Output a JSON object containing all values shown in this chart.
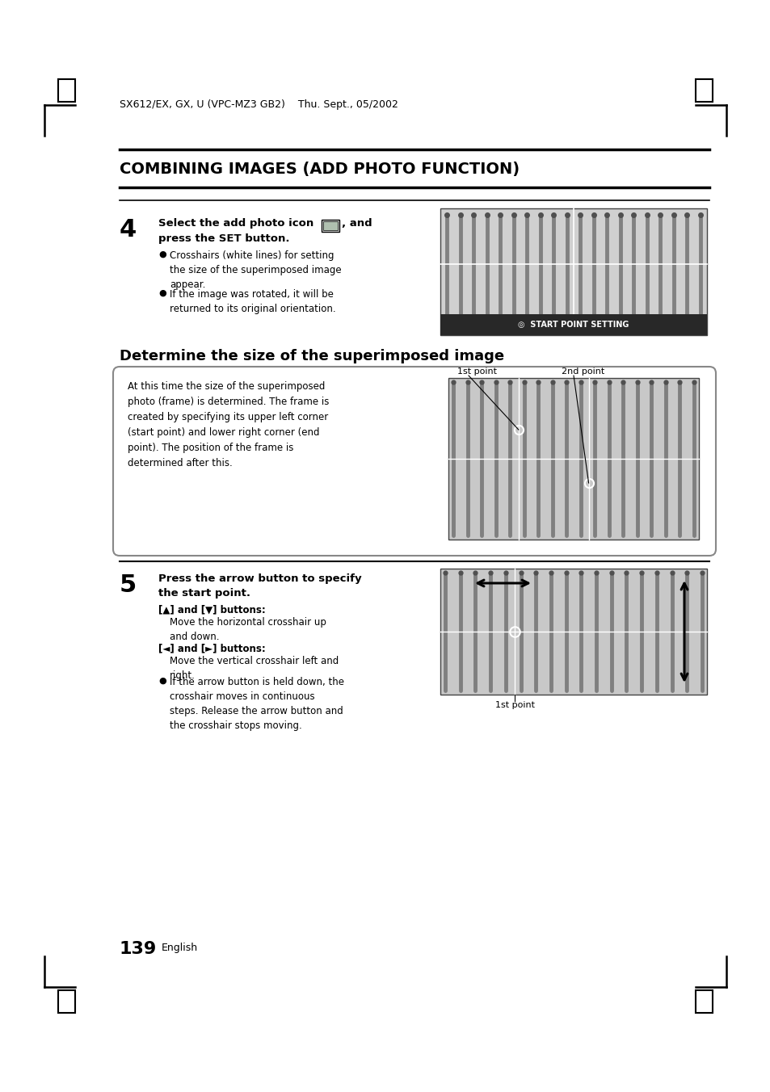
{
  "background_color": "#ffffff",
  "page_width": 9.54,
  "page_height": 13.52,
  "header_text": "SX612/EX, GX, U (VPC-MZ3 GB2)    Thu. Sept., 05/2002",
  "section_title": "COMBINING IMAGES (ADD PHOTO FUNCTION)",
  "subsection_title": "Determine the size of the superimposed image",
  "box_text_lines": [
    "At this time the size of the superimposed",
    "photo (frame) is determined. The frame is",
    "created by specifying its upper left corner",
    "(start point) and lower right corner (end",
    "point). The position of the frame is",
    "determined after this."
  ],
  "footer_page": "139",
  "footer_text": "English"
}
